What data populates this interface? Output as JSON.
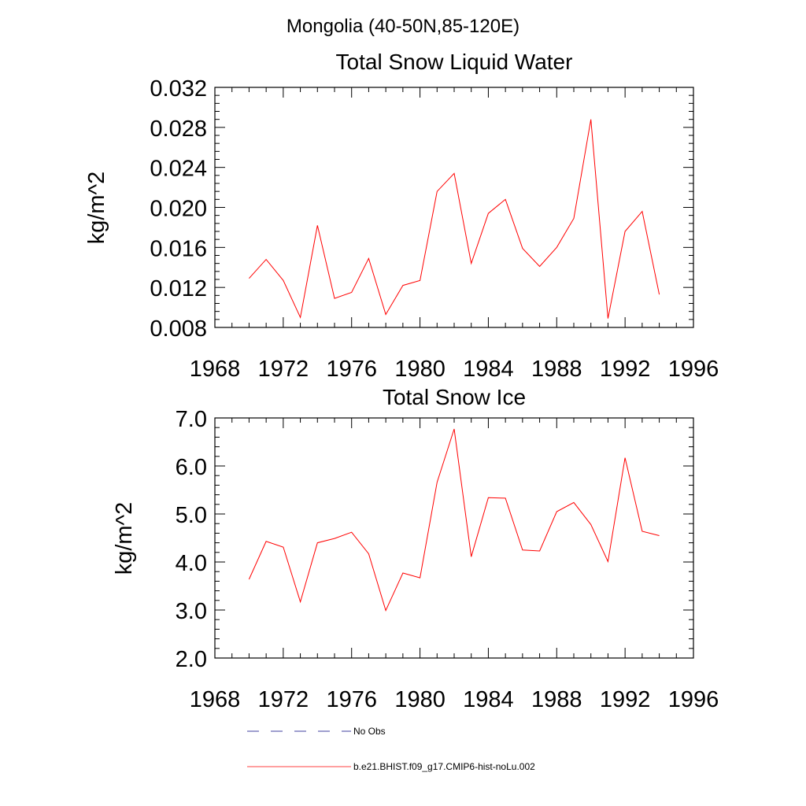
{
  "figure": {
    "title": "Mongolia (40-50N,85-120E)"
  },
  "chart_data": [
    {
      "type": "line",
      "title": "Total Snow Liquid Water",
      "xlabel": "",
      "ylabel": "kg/m^2",
      "xlim": [
        1968,
        1996
      ],
      "ylim": [
        0.008,
        0.032
      ],
      "xticks": [
        1968,
        1972,
        1976,
        1980,
        1984,
        1988,
        1992,
        1996
      ],
      "xtick_labels": [
        "1968",
        "1972",
        "1976",
        "1980",
        "1984",
        "1988",
        "1992",
        "1996"
      ],
      "yticks": [
        0.008,
        0.012,
        0.016,
        0.02,
        0.024,
        0.028,
        0.032
      ],
      "ytick_labels": [
        "0.008",
        "0.012",
        "0.016",
        "0.020",
        "0.024",
        "0.028",
        "0.032"
      ],
      "x": [
        1970,
        1971,
        1972,
        1973,
        1974,
        1975,
        1976,
        1977,
        1978,
        1979,
        1980,
        1981,
        1982,
        1983,
        1984,
        1985,
        1986,
        1987,
        1988,
        1989,
        1990,
        1991,
        1992,
        1993,
        1994
      ],
      "series": [
        {
          "name": "b.e21.BHIST.f09_g17.CMIP6-hist-noLu.002",
          "color": "#ff0000",
          "values": [
            0.0129,
            0.0148,
            0.0127,
            0.009,
            0.0182,
            0.0109,
            0.0115,
            0.0149,
            0.0093,
            0.0122,
            0.0127,
            0.0216,
            0.0234,
            0.0144,
            0.0194,
            0.0208,
            0.0159,
            0.0141,
            0.016,
            0.0189,
            0.0288,
            0.0089,
            0.0176,
            0.0196,
            0.0113
          ]
        }
      ]
    },
    {
      "type": "line",
      "title": "Total Snow Ice",
      "xlabel": "",
      "ylabel": "kg/m^2",
      "xlim": [
        1968,
        1996
      ],
      "ylim": [
        2.0,
        7.0
      ],
      "xticks": [
        1968,
        1972,
        1976,
        1980,
        1984,
        1988,
        1992,
        1996
      ],
      "xtick_labels": [
        "1968",
        "1972",
        "1976",
        "1980",
        "1984",
        "1988",
        "1992",
        "1996"
      ],
      "yticks": [
        2.0,
        3.0,
        4.0,
        5.0,
        6.0,
        7.0
      ],
      "ytick_labels": [
        "2.0",
        "3.0",
        "4.0",
        "5.0",
        "6.0",
        "7.0"
      ],
      "x": [
        1970,
        1971,
        1972,
        1973,
        1974,
        1975,
        1976,
        1977,
        1978,
        1979,
        1980,
        1981,
        1982,
        1983,
        1984,
        1985,
        1986,
        1987,
        1988,
        1989,
        1990,
        1991,
        1992,
        1993,
        1994
      ],
      "series": [
        {
          "name": "b.e21.BHIST.f09_g17.CMIP6-hist-noLu.002",
          "color": "#ff0000",
          "values": [
            3.64,
            4.43,
            4.31,
            3.17,
            4.4,
            4.49,
            4.62,
            4.17,
            2.99,
            3.77,
            3.67,
            5.66,
            6.77,
            4.11,
            5.34,
            5.33,
            4.25,
            4.23,
            5.05,
            5.24,
            4.78,
            4.01,
            6.17,
            4.64,
            4.55
          ]
        }
      ]
    }
  ],
  "legend": {
    "entries": [
      {
        "label": "No Obs",
        "style": "dashed",
        "color": "#000080"
      },
      {
        "label": "b.e21.BHIST.f09_g17.CMIP6-hist-noLu.002",
        "style": "solid",
        "color": "#ff0000"
      }
    ]
  }
}
